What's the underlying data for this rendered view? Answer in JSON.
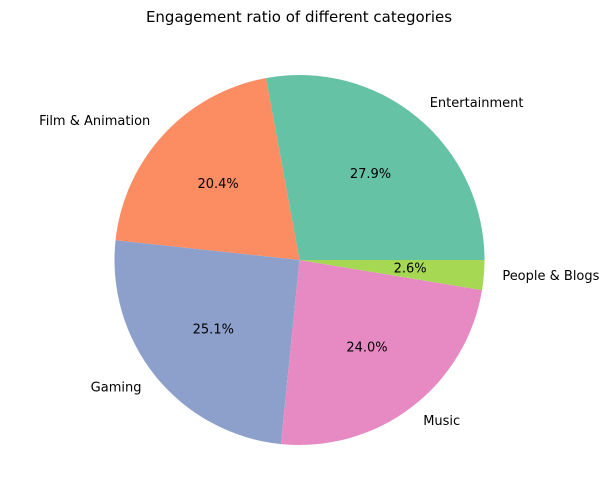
{
  "chart_data": {
    "type": "pie",
    "title": "Engagement ratio of different categories",
    "slices": [
      {
        "label": "Entertainment",
        "value": 27.9,
        "pct_label": "27.9%",
        "color": "#66c2a5"
      },
      {
        "label": "Film & Animation",
        "value": 20.4,
        "pct_label": "20.4%",
        "color": "#fc8d62"
      },
      {
        "label": "Gaming",
        "value": 25.1,
        "pct_label": "25.1%",
        "color": "#8da0cb"
      },
      {
        "label": "Music",
        "value": 24.0,
        "pct_label": "24.0%",
        "color": "#e78ac3"
      },
      {
        "label": "People & Blogs",
        "value": 2.6,
        "pct_label": "2.6%",
        "color": "#a6d854"
      }
    ],
    "start_angle_deg": 0,
    "direction": "counterclockwise",
    "legend": "none"
  }
}
